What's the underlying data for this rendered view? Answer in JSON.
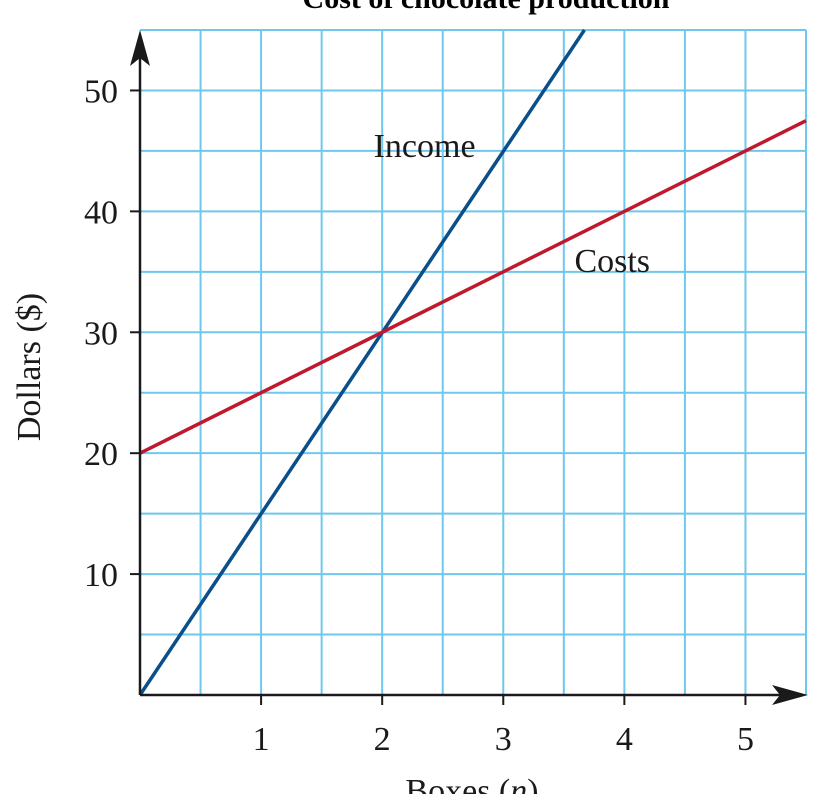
{
  "chart_data": {
    "type": "line",
    "title": "Cost of chocolate production",
    "xlabel_text": "Boxes (",
    "xlabel_var": "n",
    "xlabel_close": ")",
    "ylabel": "Dollars ($)",
    "xlim": [
      0,
      5.5
    ],
    "ylim": [
      0,
      55
    ],
    "x_ticks": [
      1,
      2,
      3,
      4,
      5
    ],
    "y_ticks": [
      10,
      20,
      30,
      40,
      50
    ],
    "grid": true,
    "grid_step_x": 0.5,
    "grid_step_y": 5,
    "series": [
      {
        "name": "Income",
        "color": "#0b4f8a",
        "x": [
          0,
          3.67
        ],
        "y": [
          0,
          55
        ]
      },
      {
        "name": "Costs",
        "color": "#c0182c",
        "x": [
          0,
          5.5
        ],
        "y": [
          20,
          47.5
        ]
      }
    ],
    "annotations": [
      {
        "text": "Income",
        "x": 2.35,
        "y": 44.5
      },
      {
        "text": "Costs",
        "x": 3.9,
        "y": 35
      }
    ]
  },
  "colors": {
    "grid": "#6ec8ee",
    "axis": "#1a1a1a"
  }
}
